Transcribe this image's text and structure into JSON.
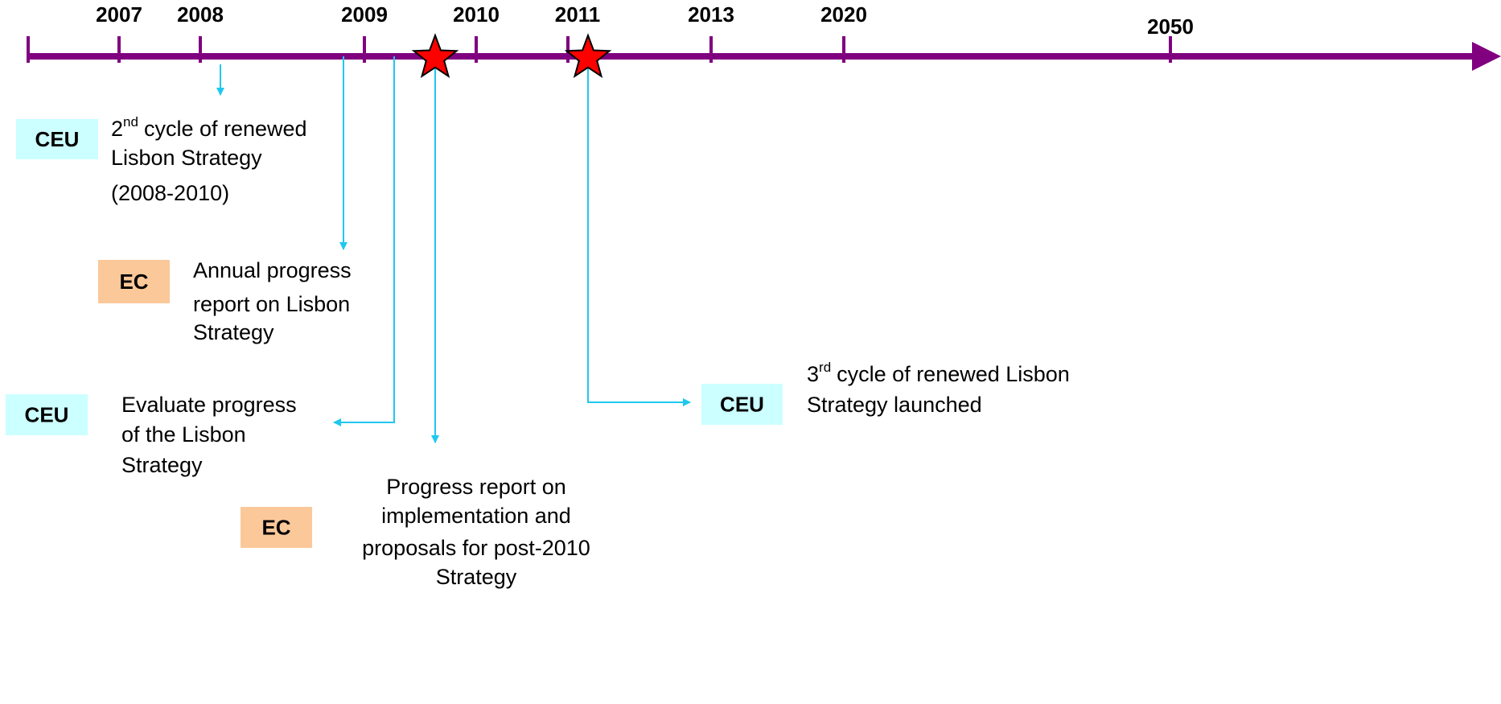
{
  "timeline": {
    "years": [
      "2007",
      "2008",
      "2009",
      "2010",
      "2011",
      "2013",
      "2020",
      "2050"
    ],
    "events": [
      {
        "badge": "CEU",
        "ordinal": "2",
        "ordinal_suffix": "nd",
        "lines": [
          "cycle of renewed",
          "Lisbon Strategy",
          "(2008-2010)"
        ]
      },
      {
        "badge": "EC",
        "lines": [
          "Annual progress",
          "report on Lisbon",
          "Strategy"
        ]
      },
      {
        "badge": "CEU",
        "lines": [
          "Evaluate progress",
          "of the Lisbon",
          "Strategy"
        ]
      },
      {
        "badge": "EC",
        "lines": [
          "Progress report on",
          "implementation and",
          "proposals for post-2010",
          "Strategy"
        ]
      },
      {
        "badge": "CEU",
        "ordinal": "3",
        "ordinal_suffix": "rd",
        "lines": [
          "cycle of renewed Lisbon",
          "Strategy launched"
        ]
      }
    ]
  }
}
